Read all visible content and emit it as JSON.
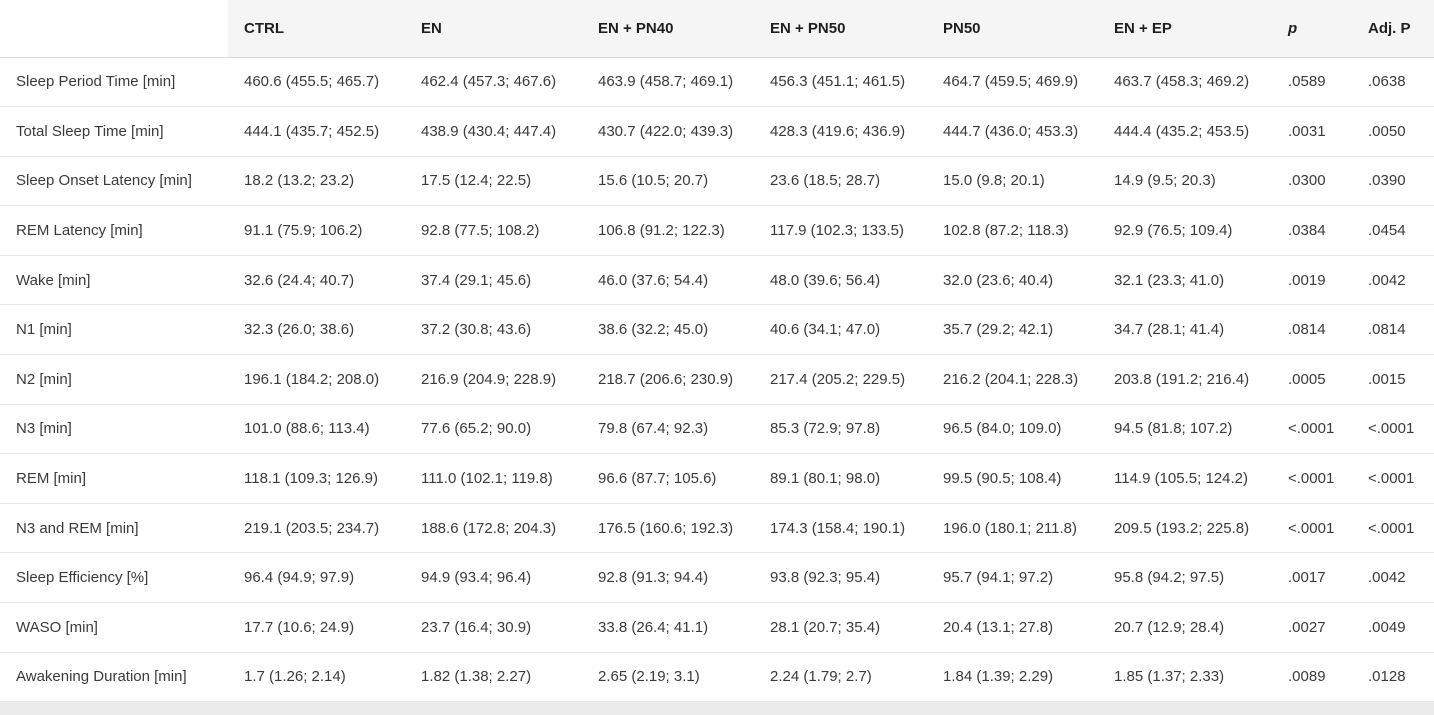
{
  "chart_data": {
    "type": "table",
    "columns": [
      "",
      "CTRL",
      "EN + PN40",
      "EN + PN50",
      "PN50",
      "EN + EP",
      "p",
      "Adj. P",
      "EN"
    ],
    "rows": [
      {
        "label": "Sleep Period Time [min]",
        "values": [
          "460.6 (455.5; 465.7)",
          "462.4 (457.3; 467.6)",
          "463.9 (458.7; 469.1)",
          "456.3 (451.1; 461.5)",
          "464.7 (459.5; 469.9)",
          "463.7 (458.3; 469.2)",
          ".0589",
          ".0638"
        ]
      },
      {
        "label": "Total Sleep Time [min]",
        "values": [
          "444.1 (435.7; 452.5)",
          "438.9 (430.4; 447.4)",
          "430.7 (422.0; 439.3)",
          "428.3 (419.6; 436.9)",
          "444.7 (436.0; 453.3)",
          "444.4 (435.2; 453.5)",
          ".0031",
          ".0050"
        ]
      },
      {
        "label": "Sleep Onset Latency [min]",
        "values": [
          "18.2 (13.2; 23.2)",
          "17.5 (12.4; 22.5)",
          "15.6 (10.5; 20.7)",
          "23.6 (18.5; 28.7)",
          "15.0 (9.8; 20.1)",
          "14.9 (9.5; 20.3)",
          ".0300",
          ".0390"
        ]
      },
      {
        "label": "REM Latency [min]",
        "values": [
          "91.1 (75.9; 106.2)",
          "92.8 (77.5; 108.2)",
          "106.8 (91.2; 122.3)",
          "117.9 (102.3; 133.5)",
          "102.8 (87.2; 118.3)",
          "92.9 (76.5; 109.4)",
          ".0384",
          ".0454"
        ]
      },
      {
        "label": "Wake [min]",
        "values": [
          "32.6 (24.4; 40.7)",
          "37.4 (29.1; 45.6)",
          "46.0 (37.6; 54.4)",
          "48.0 (39.6; 56.4)",
          "32.0 (23.6; 40.4)",
          "32.1 (23.3; 41.0)",
          ".0019",
          ".0042"
        ]
      },
      {
        "label": "N1 [min]",
        "values": [
          "32.3 (26.0; 38.6)",
          "37.2 (30.8; 43.6)",
          "38.6 (32.2; 45.0)",
          "40.6 (34.1; 47.0)",
          "35.7 (29.2; 42.1)",
          "34.7 (28.1; 41.4)",
          ".0814",
          ".0814"
        ]
      },
      {
        "label": "N2 [min]",
        "values": [
          "196.1 (184.2; 208.0)",
          "216.9 (204.9; 228.9)",
          "218.7 (206.6; 230.9)",
          "217.4 (205.2; 229.5)",
          "216.2 (204.1; 228.3)",
          "203.8 (191.2; 216.4)",
          ".0005",
          ".0015"
        ]
      },
      {
        "label": "N3 [min]",
        "values": [
          "101.0 (88.6; 113.4)",
          "77.6 (65.2; 90.0)",
          "79.8 (67.4; 92.3)",
          "85.3 (72.9; 97.8)",
          "96.5 (84.0; 109.0)",
          "94.5 (81.8; 107.2)",
          "<.0001",
          "<.0001"
        ]
      },
      {
        "label": "REM [min]",
        "values": [
          "118.1 (109.3; 126.9)",
          "111.0 (102.1; 119.8)",
          "96.6 (87.7; 105.6)",
          "89.1 (80.1; 98.0)",
          "99.5 (90.5; 108.4)",
          "114.9 (105.5; 124.2)",
          "<.0001",
          "<.0001"
        ]
      },
      {
        "label": "N3 and REM [min]",
        "values": [
          "219.1 (203.5; 234.7)",
          "188.6 (172.8; 204.3)",
          "176.5 (160.6; 192.3)",
          "174.3 (158.4; 190.1)",
          "196.0 (180.1; 211.8)",
          "209.5 (193.2; 225.8)",
          "<.0001",
          "<.0001"
        ]
      },
      {
        "label": "Sleep Efficiency [%]",
        "values": [
          "96.4 (94.9; 97.9)",
          "94.9 (93.4; 96.4)",
          "92.8 (91.3; 94.4)",
          "93.8 (92.3; 95.4)",
          "95.7 (94.1; 97.2)",
          "95.8 (94.2; 97.5)",
          ".0017",
          ".0042"
        ]
      },
      {
        "label": "WASO [min]",
        "values": [
          "17.7 (10.6; 24.9)",
          "23.7 (16.4; 30.9)",
          "33.8 (26.4; 41.1)",
          "28.1 (20.7; 35.4)",
          "20.4 (13.1; 27.8)",
          "20.7 (12.9; 28.4)",
          ".0027",
          ".0049"
        ]
      },
      {
        "label": "Awakening Duration [min]",
        "values": [
          "1.7 (1.26; 2.14)",
          "1.82 (1.38; 2.27)",
          "2.65 (2.19; 3.1)",
          "2.24 (1.79; 2.7)",
          "1.84 (1.39; 2.29)",
          "1.85 (1.37; 2.33)",
          ".0089",
          ".0128"
        ]
      }
    ]
  },
  "header": {
    "empty": "",
    "ctrl": "CTRL",
    "en": "EN",
    "en_pn40": "EN + PN40",
    "en_pn50": "EN + PN50",
    "pn50": "PN50",
    "en_ep": "EN + EP",
    "p": "p",
    "adj_p": "Adj. P"
  },
  "colors": {
    "header_background": "#f5f5f5",
    "header_border": "#d9d9d9",
    "row_border": "#e9e9e9",
    "text": "#3a3a3a",
    "header_text": "#1f1f1f",
    "scrollbar_track": "#ececec",
    "background": "#ffffff"
  }
}
